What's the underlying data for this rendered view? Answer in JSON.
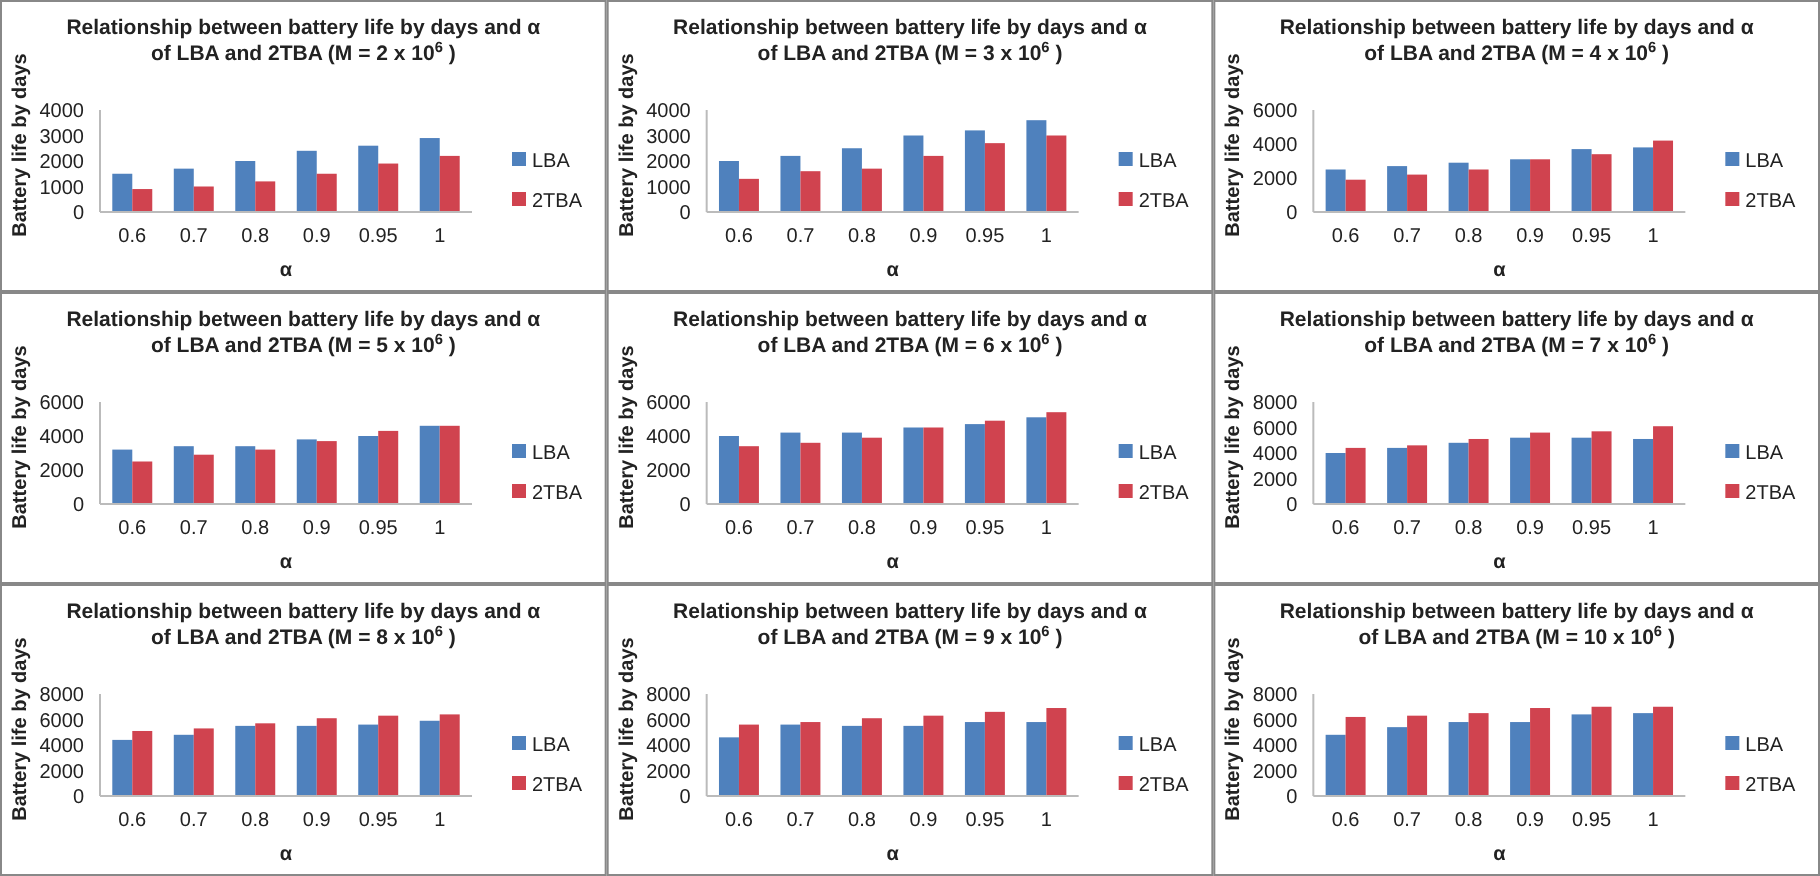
{
  "chart_data": [
    {
      "type": "bar",
      "title": "Relationship between battery life by days and α of LBA and 2TBA (M = 2 x 10$^{6}$ )",
      "xlabel": "α",
      "ylabel": "Battery life by days",
      "categories": [
        "0.6",
        "0.7",
        "0.8",
        "0.9",
        "0.95",
        "1"
      ],
      "ylim": [
        0,
        4000
      ],
      "yticks": [
        0,
        1000,
        2000,
        3000,
        4000
      ],
      "legend": "right",
      "series": [
        {
          "name": "LBA",
          "color": "#4f81bd",
          "values": [
            1500,
            1700,
            2000,
            2400,
            2600,
            2900
          ]
        },
        {
          "name": "2TBA",
          "color": "#d0434f",
          "values": [
            900,
            1000,
            1200,
            1500,
            1900,
            2200
          ]
        }
      ]
    },
    {
      "type": "bar",
      "title": "Relationship between battery life by days and α of LBA and 2TBA (M = 3 x 10$^{6}$ )",
      "xlabel": "α",
      "ylabel": "Battery life by days",
      "categories": [
        "0.6",
        "0.7",
        "0.8",
        "0.9",
        "0.95",
        "1"
      ],
      "ylim": [
        0,
        4000
      ],
      "yticks": [
        0,
        1000,
        2000,
        3000,
        4000
      ],
      "legend": "right",
      "series": [
        {
          "name": "LBA",
          "color": "#4f81bd",
          "values": [
            2000,
            2200,
            2500,
            3000,
            3200,
            3600
          ]
        },
        {
          "name": "2TBA",
          "color": "#d0434f",
          "values": [
            1300,
            1600,
            1700,
            2200,
            2700,
            3000
          ]
        }
      ]
    },
    {
      "type": "bar",
      "title": "Relationship between battery life by days and α of LBA and 2TBA (M = 4 x 10$^{6}$ )",
      "xlabel": "α",
      "ylabel": "Battery life by days",
      "categories": [
        "0.6",
        "0.7",
        "0.8",
        "0.9",
        "0.95",
        "1"
      ],
      "ylim": [
        0,
        6000
      ],
      "yticks": [
        0,
        2000,
        4000,
        6000
      ],
      "legend": "right",
      "series": [
        {
          "name": "LBA",
          "color": "#4f81bd",
          "values": [
            2500,
            2700,
            2900,
            3100,
            3700,
            3800
          ]
        },
        {
          "name": "2TBA",
          "color": "#d0434f",
          "values": [
            1900,
            2200,
            2500,
            3100,
            3400,
            4200
          ]
        }
      ]
    },
    {
      "type": "bar",
      "title": "Relationship between battery life by days and α of LBA and 2TBA (M = 5 x 10$^{6}$ )",
      "xlabel": "α",
      "ylabel": "Battery life by days",
      "categories": [
        "0.6",
        "0.7",
        "0.8",
        "0.9",
        "0.95",
        "1"
      ],
      "ylim": [
        0,
        6000
      ],
      "yticks": [
        0,
        2000,
        4000,
        6000
      ],
      "legend": "right",
      "series": [
        {
          "name": "LBA",
          "color": "#4f81bd",
          "values": [
            3200,
            3400,
            3400,
            3800,
            4000,
            4600
          ]
        },
        {
          "name": "2TBA",
          "color": "#d0434f",
          "values": [
            2500,
            2900,
            3200,
            3700,
            4300,
            4600
          ]
        }
      ]
    },
    {
      "type": "bar",
      "title": "Relationship between battery life by days and α of LBA and 2TBA (M = 6 x 10$^{6}$ )",
      "xlabel": "α",
      "ylabel": "Battery life by days",
      "categories": [
        "0.6",
        "0.7",
        "0.8",
        "0.9",
        "0.95",
        "1"
      ],
      "ylim": [
        0,
        6000
      ],
      "yticks": [
        0,
        2000,
        4000,
        6000
      ],
      "legend": "right",
      "series": [
        {
          "name": "LBA",
          "color": "#4f81bd",
          "values": [
            4000,
            4200,
            4200,
            4500,
            4700,
            5100
          ]
        },
        {
          "name": "2TBA",
          "color": "#d0434f",
          "values": [
            3400,
            3600,
            3900,
            4500,
            4900,
            5400
          ]
        }
      ]
    },
    {
      "type": "bar",
      "title": "Relationship between battery life by days and α of LBA and 2TBA (M = 7 x 10$^{6}$ )",
      "xlabel": "α",
      "ylabel": "Battery life by days",
      "categories": [
        "0.6",
        "0.7",
        "0.8",
        "0.9",
        "0.95",
        "1"
      ],
      "ylim": [
        0,
        8000
      ],
      "yticks": [
        0,
        2000,
        4000,
        6000,
        8000
      ],
      "legend": "right",
      "series": [
        {
          "name": "LBA",
          "color": "#4f81bd",
          "values": [
            4000,
            4400,
            4800,
            5200,
            5200,
            5100
          ]
        },
        {
          "name": "2TBA",
          "color": "#d0434f",
          "values": [
            4400,
            4600,
            5100,
            5600,
            5700,
            6100
          ]
        }
      ]
    },
    {
      "type": "bar",
      "title": "Relationship between battery life by days and α of LBA and 2TBA (M = 8 x 10$^{6}$ )",
      "xlabel": "α",
      "ylabel": "Battery life by days",
      "categories": [
        "0.6",
        "0.7",
        "0.8",
        "0.9",
        "0.95",
        "1"
      ],
      "ylim": [
        0,
        8000
      ],
      "yticks": [
        0,
        2000,
        4000,
        6000,
        8000
      ],
      "legend": "right",
      "series": [
        {
          "name": "LBA",
          "color": "#4f81bd",
          "values": [
            4400,
            4800,
            5500,
            5500,
            5600,
            5900
          ]
        },
        {
          "name": "2TBA",
          "color": "#d0434f",
          "values": [
            5100,
            5300,
            5700,
            6100,
            6300,
            6400
          ]
        }
      ]
    },
    {
      "type": "bar",
      "title": "Relationship between battery life by days and α of LBA and 2TBA (M = 9 x 10$^{6}$ )",
      "xlabel": "α",
      "ylabel": "Battery life by days",
      "categories": [
        "0.6",
        "0.7",
        "0.8",
        "0.9",
        "0.95",
        "1"
      ],
      "ylim": [
        0,
        8000
      ],
      "yticks": [
        0,
        2000,
        4000,
        6000,
        8000
      ],
      "legend": "right",
      "series": [
        {
          "name": "LBA",
          "color": "#4f81bd",
          "values": [
            4600,
            5600,
            5500,
            5500,
            5800,
            5800
          ]
        },
        {
          "name": "2TBA",
          "color": "#d0434f",
          "values": [
            5600,
            5800,
            6100,
            6300,
            6600,
            6900
          ]
        }
      ]
    },
    {
      "type": "bar",
      "title": "Relationship between battery life by days and α of LBA and 2TBA (M = 10 x 10$^{6}$ )",
      "xlabel": "α",
      "ylabel": "Battery life by days",
      "categories": [
        "0.6",
        "0.7",
        "0.8",
        "0.9",
        "0.95",
        "1"
      ],
      "ylim": [
        0,
        8000
      ],
      "yticks": [
        0,
        2000,
        4000,
        6000,
        8000
      ],
      "legend": "right",
      "series": [
        {
          "name": "LBA",
          "color": "#4f81bd",
          "values": [
            4800,
            5400,
            5800,
            5800,
            6400,
            6500
          ]
        },
        {
          "name": "2TBA",
          "color": "#d0434f",
          "values": [
            6200,
            6300,
            6500,
            6900,
            7000,
            7000
          ]
        }
      ]
    }
  ]
}
